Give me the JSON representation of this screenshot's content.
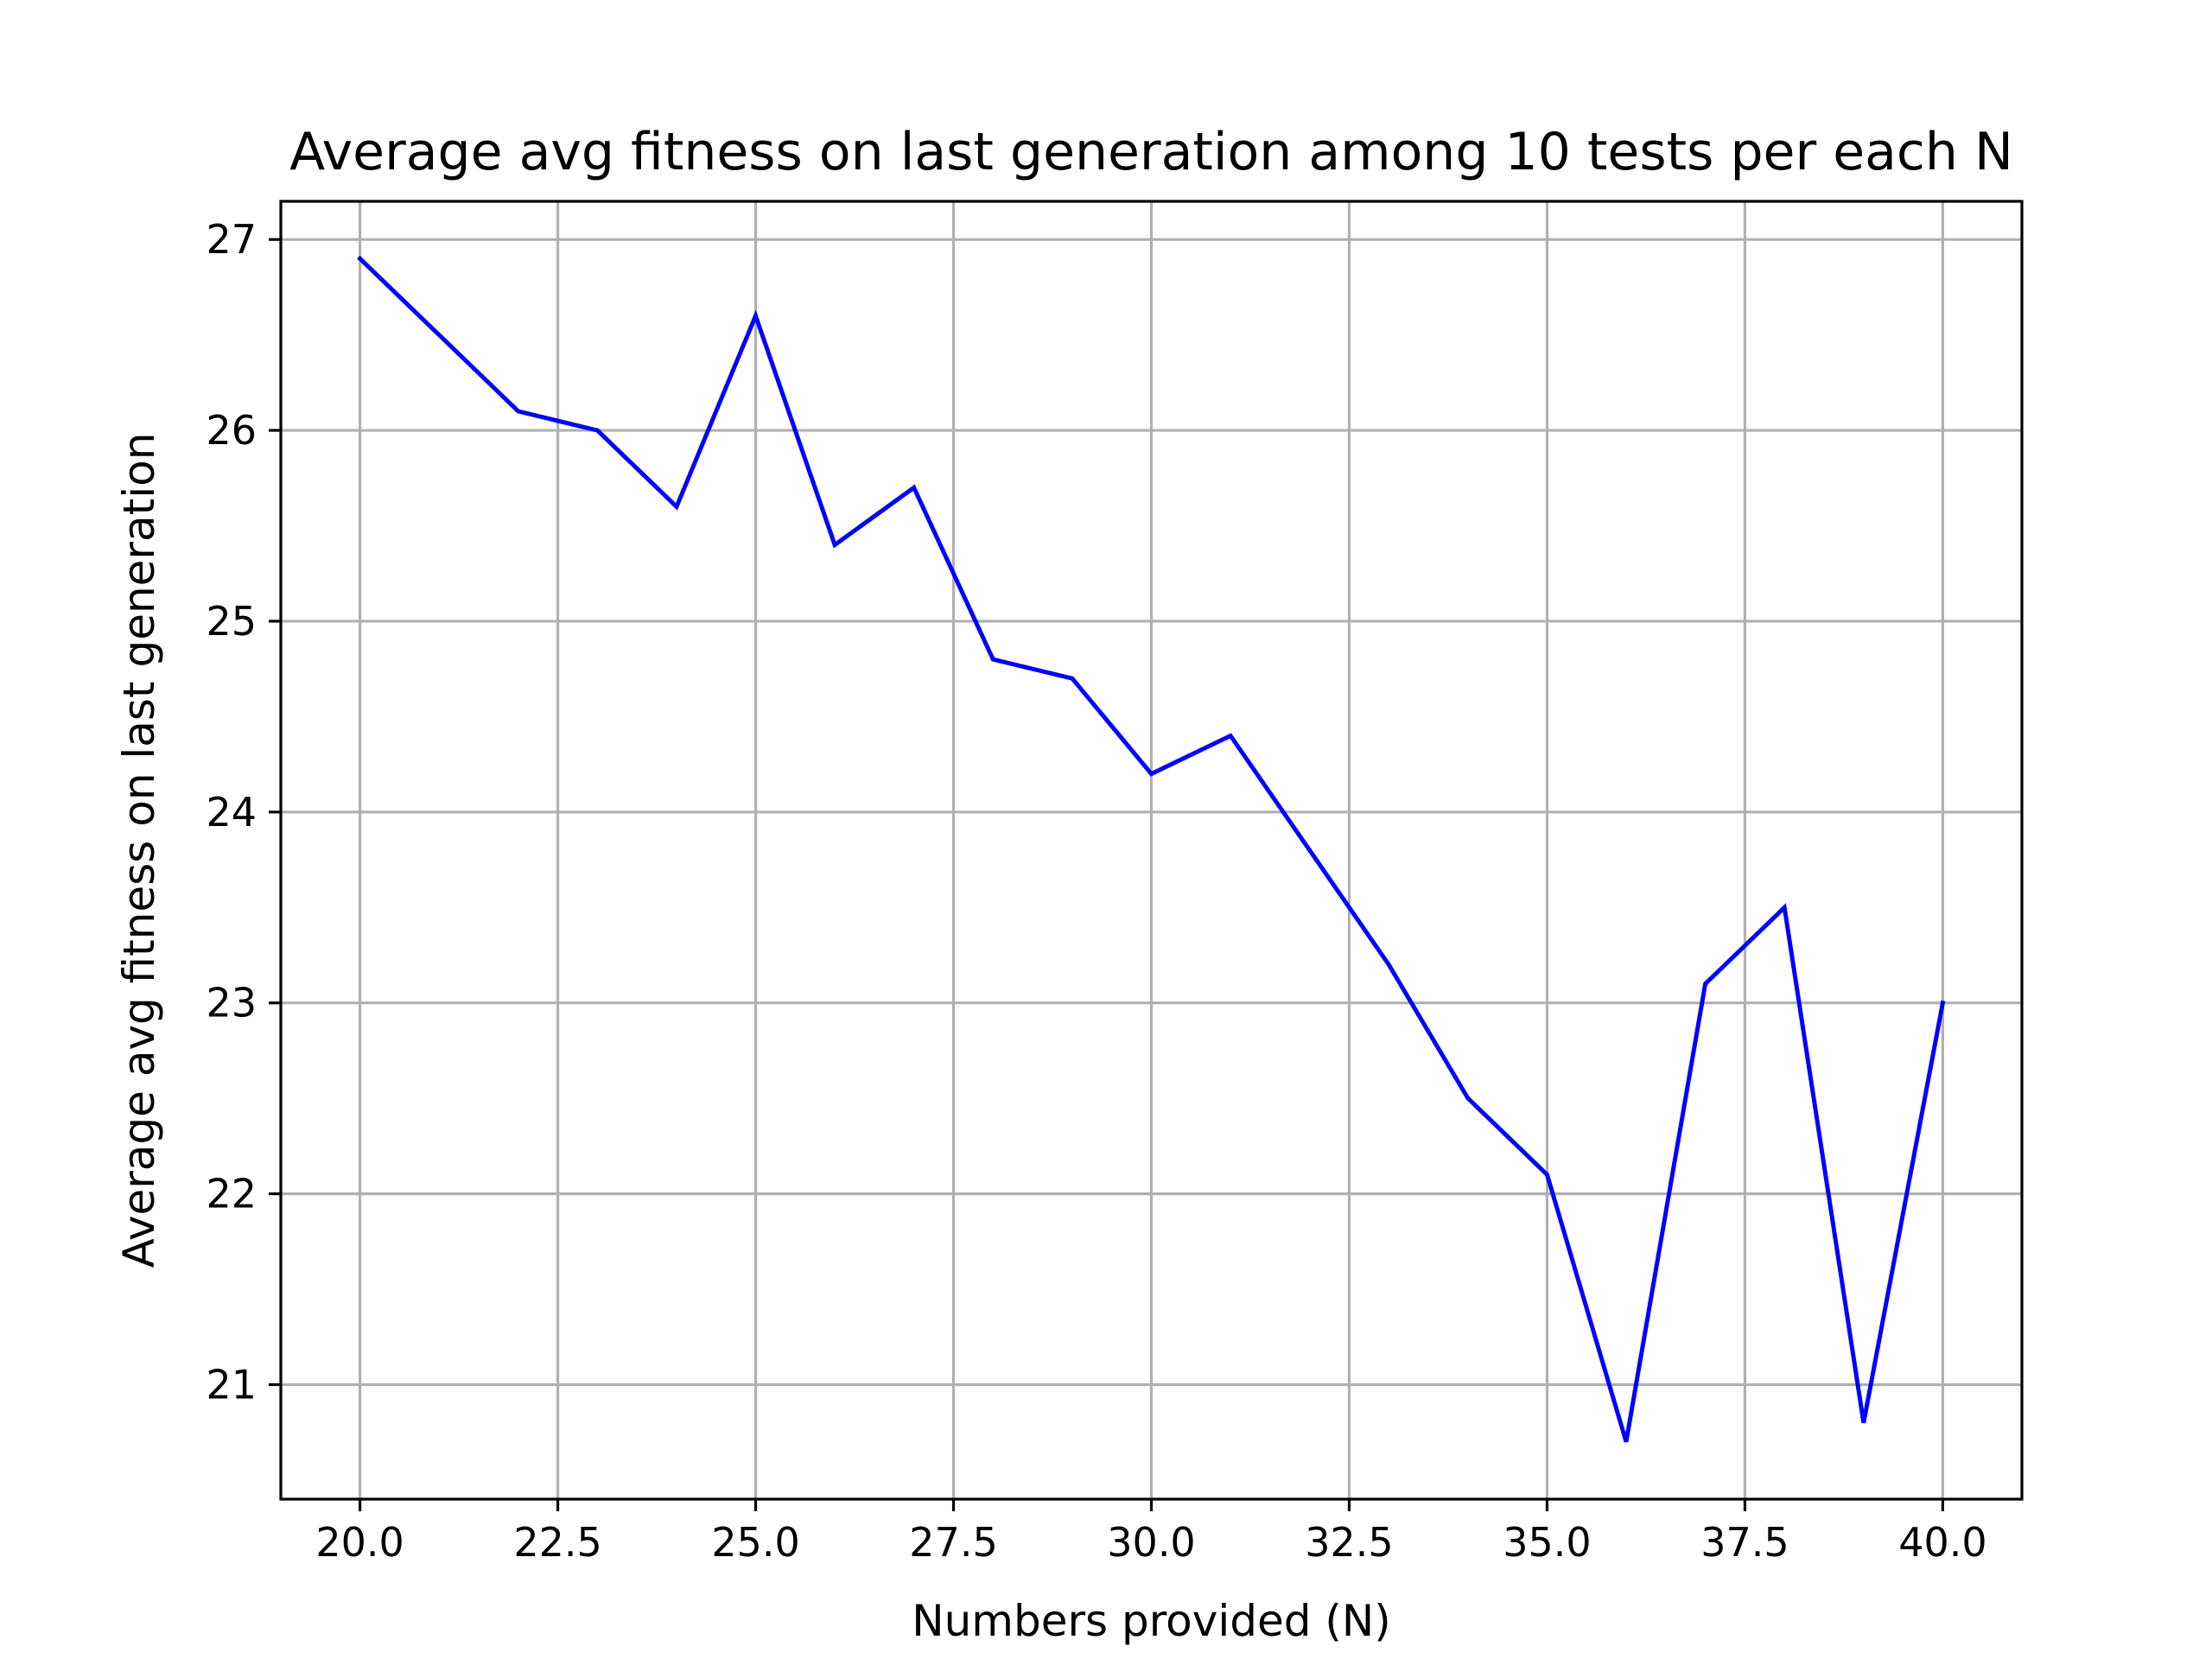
{
  "chart_data": {
    "type": "line",
    "title": "Average avg fitness on last generation among 10 tests per each N",
    "xlabel": "Numbers provided (N)",
    "ylabel": "Average avg fitness on last generation",
    "xlim": [
      19,
      41
    ],
    "ylim": [
      20.4,
      27.2
    ],
    "xticks": [
      20.0,
      22.5,
      25.0,
      27.5,
      30.0,
      32.5,
      35.0,
      37.5,
      40.0
    ],
    "xtick_labels": [
      "20.0",
      "22.5",
      "25.0",
      "27.5",
      "30.0",
      "32.5",
      "35.0",
      "37.5",
      "40.0"
    ],
    "yticks": [
      21,
      22,
      23,
      24,
      25,
      26,
      27
    ],
    "ytick_labels": [
      "21",
      "22",
      "23",
      "24",
      "25",
      "26",
      "27"
    ],
    "grid": true,
    "series": [
      {
        "color": "#0000ff",
        "x": [
          20,
          22,
          23,
          24,
          25,
          26,
          27,
          28,
          29,
          30,
          31,
          32,
          33,
          34,
          35,
          36,
          37,
          38,
          39,
          40
        ],
        "y": [
          26.9,
          26.1,
          26.0,
          25.6,
          26.6,
          25.4,
          25.7,
          24.8,
          24.7,
          24.2,
          24.4,
          23.8,
          23.2,
          22.5,
          22.1,
          20.7,
          23.1,
          23.5,
          20.8,
          23.0
        ]
      }
    ]
  }
}
